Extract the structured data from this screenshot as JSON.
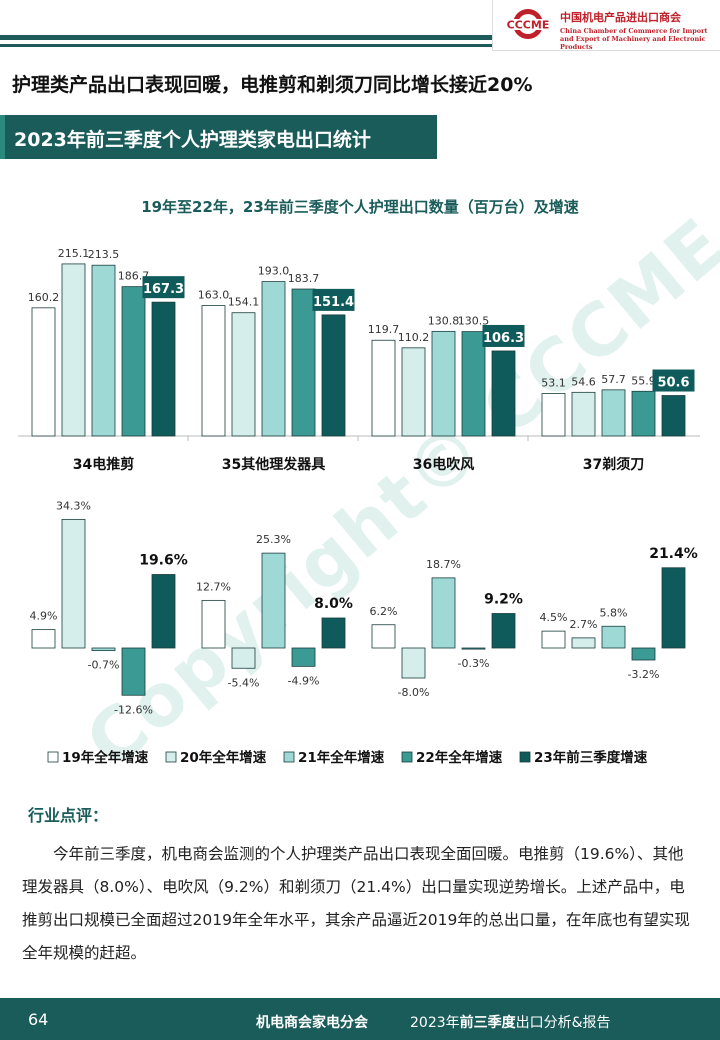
{
  "header": {
    "logo_text": "CCCME",
    "org_cn": "中国机电产品进出口商会",
    "org_en": "China Chamber of Commerce for Import and Export of Machinery and Electronic Products"
  },
  "main_title": "护理类产品出口表现回暖，电推剪和剃须刀同比增长接近20%",
  "section_title": "2023年前三季度个人护理类家电出口统计",
  "chart_title": "19年至22年，23年前三季度个人护理出口数量（百万台）及增速",
  "chart_data": [
    {
      "type": "bar",
      "categories": [
        "34电推剪",
        "35其他理发器具",
        "36电吹风",
        "37剃须刀"
      ],
      "series": [
        {
          "name": "19年全年增速",
          "values": [
            160.2,
            163.0,
            119.7,
            53.1
          ]
        },
        {
          "name": "20年全年增速",
          "values": [
            215.1,
            154.1,
            110.2,
            54.6
          ]
        },
        {
          "name": "21年全年增速",
          "values": [
            213.5,
            193.0,
            130.8,
            57.7
          ]
        },
        {
          "name": "22年全年增速",
          "values": [
            186.7,
            183.7,
            130.5,
            55.9
          ]
        },
        {
          "name": "23年前三季度增速",
          "values": [
            167.3,
            151.4,
            106.3,
            50.6
          ]
        }
      ],
      "labels": [
        [
          "160.2",
          "215.1",
          "213.5",
          "186.7",
          "167.3"
        ],
        [
          "163.0",
          "154.1",
          "193.0",
          "183.7",
          "151.4"
        ],
        [
          "119.7",
          "110.2",
          "130.8",
          "130.5",
          "106.3"
        ],
        [
          "53.1",
          "54.6",
          "57.7",
          "55.9",
          "50.6"
        ]
      ],
      "ylim": [
        0,
        230
      ]
    },
    {
      "type": "bar",
      "categories": [
        "34电推剪",
        "35其他理发器具",
        "36电吹风",
        "37剃须刀"
      ],
      "series": [
        {
          "name": "19年全年增速",
          "values": [
            4.9,
            12.7,
            6.2,
            4.5
          ]
        },
        {
          "name": "20年全年增速",
          "values": [
            34.3,
            -5.4,
            -8.0,
            2.7
          ]
        },
        {
          "name": "21年全年增速",
          "values": [
            -0.7,
            25.3,
            18.7,
            5.8
          ]
        },
        {
          "name": "22年全年增速",
          "values": [
            -12.6,
            -4.9,
            -0.3,
            -3.2
          ]
        },
        {
          "name": "23年前三季度增速",
          "values": [
            19.6,
            8.0,
            9.2,
            21.4
          ]
        }
      ],
      "labels": [
        [
          "4.9%",
          "34.3%",
          "-0.7%",
          "-12.6%",
          "19.6%"
        ],
        [
          "12.7%",
          "-5.4%",
          "25.3%",
          "-4.9%",
          "8.0%"
        ],
        [
          "6.2%",
          "-8.0%",
          "18.7%",
          "-0.3%",
          "9.2%"
        ],
        [
          "4.5%",
          "2.7%",
          "5.8%",
          "-3.2%",
          "21.4%"
        ]
      ],
      "ylim": [
        -15,
        40
      ]
    }
  ],
  "series_colors": [
    "#ffffff",
    "#d5eeec",
    "#9ed9d5",
    "#3b9a94",
    "#0f5a5a"
  ],
  "legend": [
    "19年全年增速",
    "20年全年增速",
    "21年全年增速",
    "22年全年增速",
    "23年前三季度增速"
  ],
  "comment": {
    "heading": "行业点评：",
    "body": "今年前三季度，机电商会监测的个人护理类产品出口表现全面回暖。电推剪（19.6%）、其他理发器具（8.0%）、电吹风（9.2%）和剃须刀（21.4%）出口量实现逆势增长。上述产品中，电推剪出口规模已全面超过2019年全年水平，其余产品逼近2019年的总出口量，在年底也有望实现全年规模的赶超。"
  },
  "watermark": "Copyright© CCCME",
  "footer": {
    "page": "64",
    "org": "机电商会家电分会",
    "report_prefix": "2023年",
    "report_highlight": "前三季度",
    "report_suffix": "出口分析&报告"
  }
}
